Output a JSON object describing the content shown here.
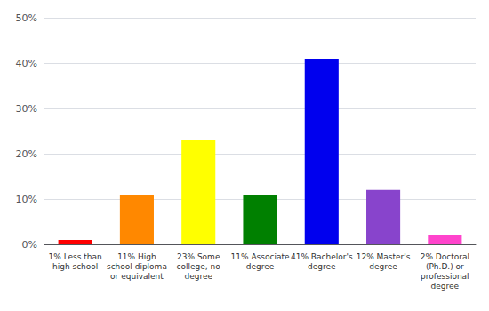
{
  "chart_data": {
    "type": "bar",
    "categories": [
      "1% Less than\nhigh school",
      "11% High\nschool diploma\nor equivalent",
      "23% Some\ncollege, no\ndegree",
      "11% Associate\ndegree",
      "41% Bachelor's\ndegree",
      "12% Master's\ndegree",
      "2% Doctoral\n(Ph.D.) or\nprofessional\ndegree"
    ],
    "values": [
      1,
      11,
      23,
      11,
      41,
      12,
      2
    ],
    "colors": [
      "#ff0000",
      "#ff8800",
      "#ffff00",
      "#008000",
      "#0000ee",
      "#8844cc",
      "#ff44cc"
    ],
    "ylim": [
      0,
      50
    ],
    "yticks": [
      {
        "value": 0,
        "label": "0%"
      },
      {
        "value": 10,
        "label": "10%"
      },
      {
        "value": 20,
        "label": "20%"
      },
      {
        "value": 30,
        "label": "30%"
      },
      {
        "value": 40,
        "label": "40%"
      },
      {
        "value": 50,
        "label": "50%"
      }
    ],
    "grid": true
  }
}
